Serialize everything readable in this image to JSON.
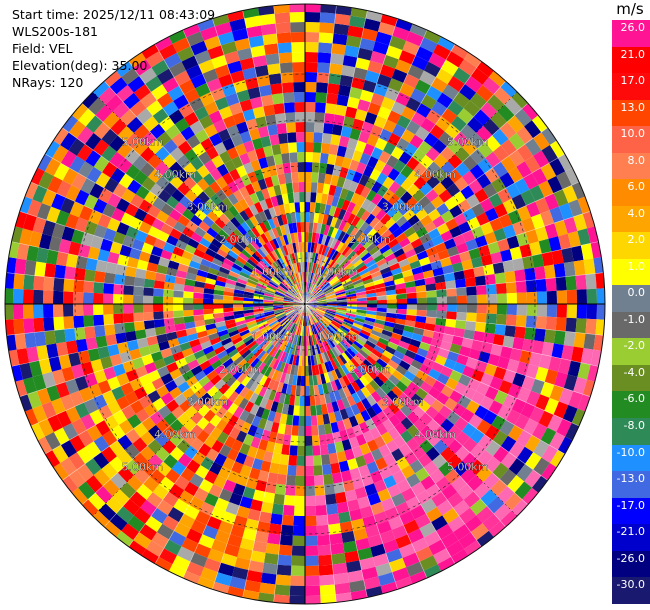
{
  "info": {
    "start_time": "Start time: 2025/12/11 08:43:09",
    "instrument": "WLS200s-181",
    "field": "Field: VEL",
    "elevation": "Elevation(deg): 35.00",
    "nrays": "NRays: 120"
  },
  "chart_data": {
    "type": "heatmap",
    "projection": "polar-ppi",
    "rays": 120,
    "max_range_km": 6.5,
    "range_ring_labels": [
      "1.00km",
      "2.00km",
      "3.00km",
      "4.00km",
      "5.00km"
    ],
    "grid": true,
    "field": "VEL",
    "dominant_pattern": {
      "receding_sector_deg": [
        100,
        180
      ],
      "approaching_sector_deg": [
        190,
        250
      ]
    }
  },
  "legend": {
    "unit": "m/s",
    "ticks": [
      "26.0",
      "21.0",
      "17.0",
      "13.0",
      "10.0",
      "8.0",
      "6.0",
      "4.0",
      "2.0",
      "1.0",
      "0.0",
      "-1.0",
      "-2.0",
      "-4.0",
      "-6.0",
      "-8.0",
      "-10.0",
      "-13.0",
      "-17.0",
      "-21.0",
      "-26.0",
      "-30.0"
    ],
    "colors": [
      "#ff1493",
      "#ff3399",
      "#ff0000",
      "#ff0a0a",
      "#ff4500",
      "#ff6347",
      "#ff7f50",
      "#ff8c00",
      "#ffa500",
      "#ffd700",
      "#ffff00",
      "#a9a9a9",
      "#708090",
      "#696969",
      "#9acd32",
      "#6b8e23",
      "#228b22",
      "#2e8b57",
      "#1e90ff",
      "#4169e1",
      "#0000ff",
      "#0000cd",
      "#000080",
      "#191970"
    ]
  }
}
